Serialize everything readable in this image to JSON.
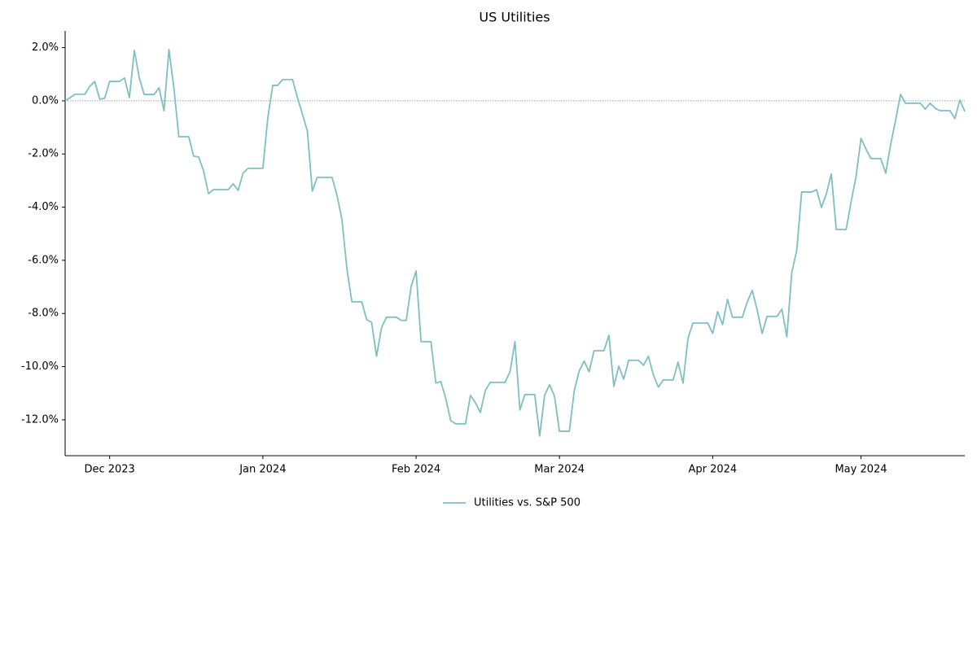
{
  "chart_data": {
    "type": "line",
    "title": "US Utilities",
    "series": [
      {
        "name": "Utilities vs. S&P 500",
        "color": "#7fbfc4",
        "values": [
          0.0,
          0.12,
          0.25,
          0.25,
          0.25,
          0.55,
          0.73,
          0.06,
          0.1,
          0.73,
          0.73,
          0.73,
          0.86,
          0.12,
          1.9,
          0.86,
          0.24,
          0.24,
          0.24,
          0.49,
          -0.37,
          1.93,
          0.49,
          -1.35,
          -1.35,
          -1.35,
          -2.08,
          -2.11,
          -2.63,
          -3.49,
          -3.34,
          -3.34,
          -3.34,
          -3.34,
          -3.12,
          -3.37,
          -2.72,
          -2.54,
          -2.54,
          -2.54,
          -2.54,
          -0.64,
          0.58,
          0.58,
          0.8,
          0.8,
          0.8,
          0.12,
          -0.5,
          -1.13,
          -3.4,
          -2.88,
          -2.88,
          -2.88,
          -2.88,
          -3.55,
          -4.47,
          -6.31,
          -7.56,
          -7.56,
          -7.56,
          -8.23,
          -8.33,
          -9.61,
          -8.54,
          -8.14,
          -8.14,
          -8.14,
          -8.26,
          -8.26,
          -6.98,
          -6.4,
          -9.06,
          -9.06,
          -9.06,
          -10.62,
          -10.56,
          -11.2,
          -12.03,
          -12.15,
          -12.15,
          -12.15,
          -11.08,
          -11.36,
          -11.72,
          -10.9,
          -10.59,
          -10.59,
          -10.59,
          -10.59,
          -10.19,
          -9.06,
          -11.63,
          -11.05,
          -11.05,
          -11.05,
          -12.61,
          -11.08,
          -10.68,
          -11.11,
          -12.43,
          -12.43,
          -12.43,
          -10.9,
          -10.16,
          -9.79,
          -10.19,
          -9.4,
          -9.4,
          -9.4,
          -8.82,
          -10.74,
          -9.98,
          -10.47,
          -9.76,
          -9.76,
          -9.76,
          -9.95,
          -9.61,
          -10.31,
          -10.77,
          -10.5,
          -10.5,
          -10.5,
          -9.83,
          -10.62,
          -8.94,
          -8.36,
          -8.36,
          -8.36,
          -8.36,
          -8.75,
          -7.93,
          -8.42,
          -7.47,
          -8.14,
          -8.14,
          -8.14,
          -7.56,
          -7.13,
          -7.87,
          -8.75,
          -8.11,
          -8.11,
          -8.11,
          -7.84,
          -8.88,
          -6.46,
          -5.63,
          -3.43,
          -3.43,
          -3.43,
          -3.34,
          -4.01,
          -3.49,
          -2.75,
          -4.84,
          -4.84,
          -4.84,
          -3.8,
          -2.85,
          -1.41,
          -1.81,
          -2.17,
          -2.17,
          -2.17,
          -2.72,
          -1.65,
          -0.73,
          0.24,
          -0.09,
          -0.09,
          -0.09,
          -0.09,
          -0.31,
          -0.09,
          -0.28,
          -0.37,
          -0.37,
          -0.37,
          -0.67,
          0.03,
          -0.4
        ]
      }
    ],
    "xlim": [
      0,
      182
    ],
    "xticks": [
      {
        "value": 9,
        "label": "Dec 2023"
      },
      {
        "value": 40,
        "label": "Jan 2024"
      },
      {
        "value": 71,
        "label": "Feb 2024"
      },
      {
        "value": 100,
        "label": "Mar 2024"
      },
      {
        "value": 131,
        "label": "Apr 2024"
      },
      {
        "value": 161,
        "label": "May 2024"
      }
    ],
    "ylim": [
      -13.35,
      2.63
    ],
    "yticks": [
      {
        "value": 2,
        "label": "2.0%"
      },
      {
        "value": 0,
        "label": "0.0%"
      },
      {
        "value": -2,
        "label": "-2.0%"
      },
      {
        "value": -4,
        "label": "-4.0%"
      },
      {
        "value": -6,
        "label": "-6.0%"
      },
      {
        "value": -8,
        "label": "-8.0%"
      },
      {
        "value": -10,
        "label": "-10.0%"
      },
      {
        "value": -12,
        "label": "-12.0%"
      }
    ],
    "reference_line": 0,
    "legend": "bottom"
  }
}
